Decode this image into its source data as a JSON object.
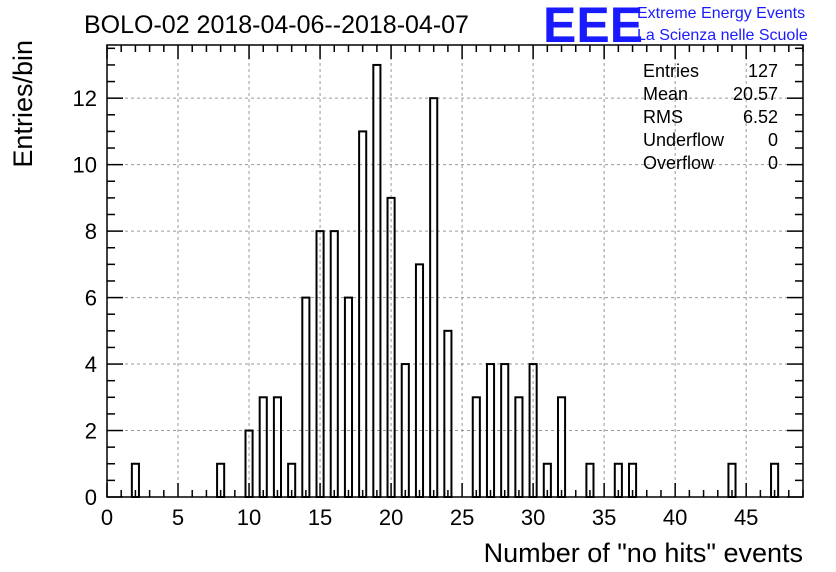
{
  "chart_data": {
    "type": "bar",
    "title": "BOLO-02 2018-04-06--2018-04-07",
    "xlabel": "Number of \"no hits\" events",
    "ylabel": "Entries/bin",
    "xlim": [
      0,
      49
    ],
    "ylim": [
      0,
      13.6
    ],
    "xticks": [
      "0",
      "5",
      "10",
      "15",
      "20",
      "25",
      "30",
      "35",
      "40",
      "45"
    ],
    "yticks": [
      "0",
      "2",
      "4",
      "6",
      "8",
      "10",
      "12"
    ],
    "grid": true,
    "bin_width": 0.5,
    "bins": [
      {
        "x": 1.75,
        "y": 1
      },
      {
        "x": 7.75,
        "y": 1
      },
      {
        "x": 9.75,
        "y": 2
      },
      {
        "x": 10.75,
        "y": 3
      },
      {
        "x": 11.75,
        "y": 3
      },
      {
        "x": 12.75,
        "y": 1
      },
      {
        "x": 13.75,
        "y": 6
      },
      {
        "x": 14.75,
        "y": 8
      },
      {
        "x": 15.75,
        "y": 8
      },
      {
        "x": 16.75,
        "y": 6
      },
      {
        "x": 17.75,
        "y": 11
      },
      {
        "x": 18.75,
        "y": 13
      },
      {
        "x": 19.75,
        "y": 9
      },
      {
        "x": 20.75,
        "y": 4
      },
      {
        "x": 21.75,
        "y": 7
      },
      {
        "x": 22.75,
        "y": 12
      },
      {
        "x": 23.75,
        "y": 5
      },
      {
        "x": 25.75,
        "y": 3
      },
      {
        "x": 26.75,
        "y": 4
      },
      {
        "x": 27.75,
        "y": 4
      },
      {
        "x": 28.75,
        "y": 3
      },
      {
        "x": 29.75,
        "y": 4
      },
      {
        "x": 30.75,
        "y": 1
      },
      {
        "x": 31.75,
        "y": 3
      },
      {
        "x": 33.75,
        "y": 1
      },
      {
        "x": 35.75,
        "y": 1
      },
      {
        "x": 36.75,
        "y": 1
      },
      {
        "x": 43.75,
        "y": 1
      },
      {
        "x": 46.75,
        "y": 1
      }
    ],
    "stats": [
      {
        "label": "Entries",
        "value": "127"
      },
      {
        "label": "Mean",
        "value": "20.57"
      },
      {
        "label": "RMS",
        "value": "6.52"
      },
      {
        "label": "Underflow",
        "value": "0"
      },
      {
        "label": "Overflow",
        "value": "0"
      }
    ],
    "stats_placement": "top-right"
  },
  "logo": {
    "letters": "EEE",
    "line1": "Extreme Energy Events",
    "line2": "La Scienza nelle Scuole",
    "color": "#1a1aff"
  }
}
